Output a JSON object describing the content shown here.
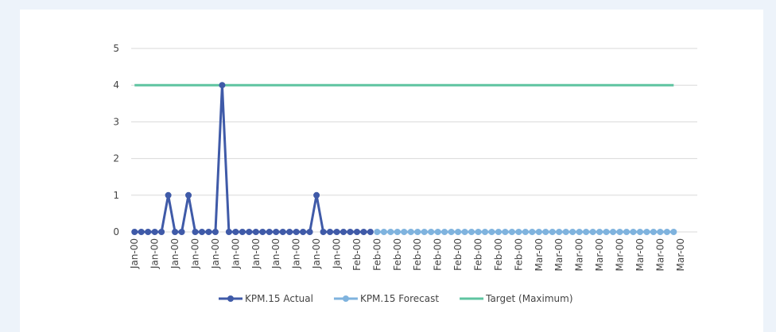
{
  "chart_data": {
    "type": "line",
    "categories": [
      "Jan-00",
      null,
      null,
      "Jan-00",
      null,
      null,
      "Jan-00",
      null,
      null,
      "Jan-00",
      null,
      null,
      "Jan-00",
      null,
      null,
      "Jan-00",
      null,
      null,
      "Jan-00",
      null,
      null,
      "Jan-00",
      null,
      null,
      "Jan-00",
      null,
      null,
      "Jan-00",
      null,
      null,
      "Jan-00",
      null,
      null,
      "Feb-00",
      null,
      null,
      "Feb-00",
      null,
      null,
      "Feb-00",
      null,
      null,
      "Feb-00",
      null,
      null,
      "Feb-00",
      null,
      null,
      "Feb-00",
      null,
      null,
      "Feb-00",
      null,
      null,
      "Feb-00",
      null,
      null,
      "Feb-00",
      null,
      null,
      "Mar-00",
      null,
      null,
      "Mar-00",
      null,
      null,
      "Mar-00",
      null,
      null,
      "Mar-00",
      null,
      null,
      "Mar-00",
      null,
      null,
      "Mar-00",
      null,
      null,
      "Mar-00",
      null,
      null,
      "Mar-00",
      null,
      null
    ],
    "series": [
      {
        "name": "KPM.15 Actual",
        "color": "#3f5aa8",
        "markers": true,
        "values": [
          0,
          0,
          0,
          0,
          0,
          1,
          0,
          0,
          1,
          0,
          0,
          0,
          0,
          4,
          0,
          0,
          0,
          0,
          0,
          0,
          0,
          0,
          0,
          0,
          0,
          0,
          0,
          1,
          0,
          0,
          0,
          0,
          0,
          0,
          0,
          0,
          null,
          null,
          null,
          null,
          null,
          null,
          null,
          null,
          null,
          null,
          null,
          null,
          null,
          null,
          null,
          null,
          null,
          null,
          null,
          null,
          null,
          null,
          null,
          null,
          null,
          null,
          null,
          null,
          null,
          null,
          null,
          null,
          null,
          null,
          null,
          null,
          null,
          null,
          null,
          null,
          null,
          null,
          null,
          null,
          null,
          null,
          null,
          null
        ]
      },
      {
        "name": "KPM.15 Forecast",
        "color": "#7fb3de",
        "markers": true,
        "values": [
          null,
          null,
          null,
          null,
          null,
          null,
          null,
          null,
          null,
          null,
          null,
          null,
          null,
          null,
          null,
          null,
          null,
          null,
          null,
          null,
          null,
          null,
          null,
          null,
          null,
          null,
          null,
          null,
          null,
          null,
          null,
          null,
          null,
          null,
          null,
          null,
          0,
          0,
          0,
          0,
          0,
          0,
          0,
          0,
          0,
          0,
          0,
          0,
          0,
          0,
          0,
          0,
          0,
          0,
          0,
          0,
          0,
          0,
          0,
          0,
          0,
          0,
          0,
          0,
          0,
          0,
          0,
          0,
          0,
          0,
          0,
          0,
          0,
          0,
          0,
          0,
          0,
          0,
          0,
          0,
          0,
          null,
          null,
          null
        ]
      },
      {
        "name": "Target (Maximum)",
        "color": "#5ec4a0",
        "markers": false,
        "values": [
          4,
          4,
          4,
          4,
          4,
          4,
          4,
          4,
          4,
          4,
          4,
          4,
          4,
          4,
          4,
          4,
          4,
          4,
          4,
          4,
          4,
          4,
          4,
          4,
          4,
          4,
          4,
          4,
          4,
          4,
          4,
          4,
          4,
          4,
          4,
          4,
          4,
          4,
          4,
          4,
          4,
          4,
          4,
          4,
          4,
          4,
          4,
          4,
          4,
          4,
          4,
          4,
          4,
          4,
          4,
          4,
          4,
          4,
          4,
          4,
          4,
          4,
          4,
          4,
          4,
          4,
          4,
          4,
          4,
          4,
          4,
          4,
          4,
          4,
          4,
          4,
          4,
          4,
          4,
          4,
          4,
          null,
          null,
          null
        ]
      }
    ],
    "ylim": [
      0,
      5
    ],
    "yticks": [
      0,
      1,
      2,
      3,
      4,
      5
    ],
    "grid": true,
    "legend": "bottom"
  }
}
